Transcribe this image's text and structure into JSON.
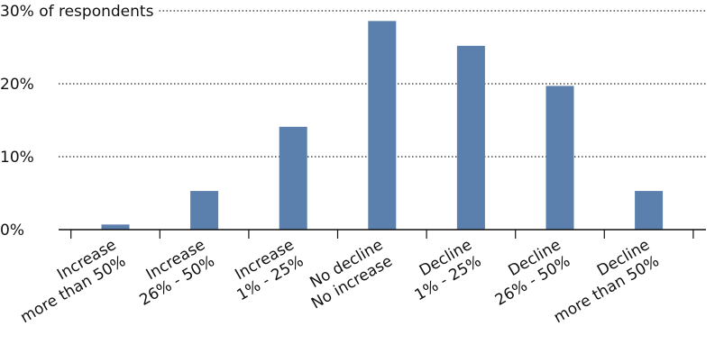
{
  "chart_data": {
    "type": "bar",
    "title": "",
    "xlabel": "",
    "ylabel": "",
    "y_axis_top_label": "30% of respondents",
    "categories": [
      [
        "Increase",
        "more than 50%"
      ],
      [
        "Increase",
        "26% - 50%"
      ],
      [
        "Increase",
        "1% - 25%"
      ],
      [
        "No decline",
        "No increase"
      ],
      [
        "Decline",
        "1% - 25%"
      ],
      [
        "Decline",
        "26% - 50%"
      ],
      [
        "Decline",
        "more than 50%"
      ]
    ],
    "values": [
      0.7,
      5.3,
      14.1,
      28.6,
      25.2,
      19.7,
      5.3
    ],
    "ylim": [
      0,
      30
    ],
    "yticks": [
      0,
      10,
      20,
      30
    ],
    "ytick_labels": [
      "0%",
      "10%",
      "20%",
      "30% of respondents"
    ],
    "grid": true,
    "bar_color": "#5b80ad",
    "axis_color": "#111111",
    "grid_color": "#222222"
  }
}
